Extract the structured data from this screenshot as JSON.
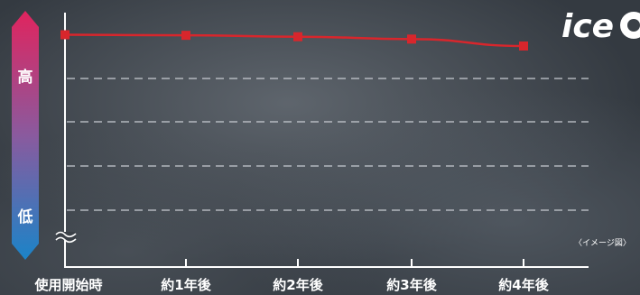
{
  "logo": {
    "text": "ice"
  },
  "scale": {
    "high_label": "高",
    "low_label": "低",
    "gradient_top_color": "#e0245e",
    "gradient_bottom_color": "#1b84c8"
  },
  "note": "〈イメージ図〉",
  "colors": {
    "line": "#d8262c",
    "marker": "#d8262c",
    "axis": "#ffffff",
    "grid": "#c8ccd2"
  },
  "chart_data": {
    "type": "line",
    "title": "",
    "xlabel": "",
    "ylabel": "",
    "categories": [
      "使用開始時",
      "約1年後",
      "約2年後",
      "約3年後",
      "約4年後"
    ],
    "series": [
      {
        "values": [
          100,
          99.7,
          99.0,
          97.8,
          94.3
        ]
      }
    ],
    "ylim": [
      0,
      100
    ],
    "grid": true,
    "y_axis_break": true,
    "marker": "square"
  }
}
